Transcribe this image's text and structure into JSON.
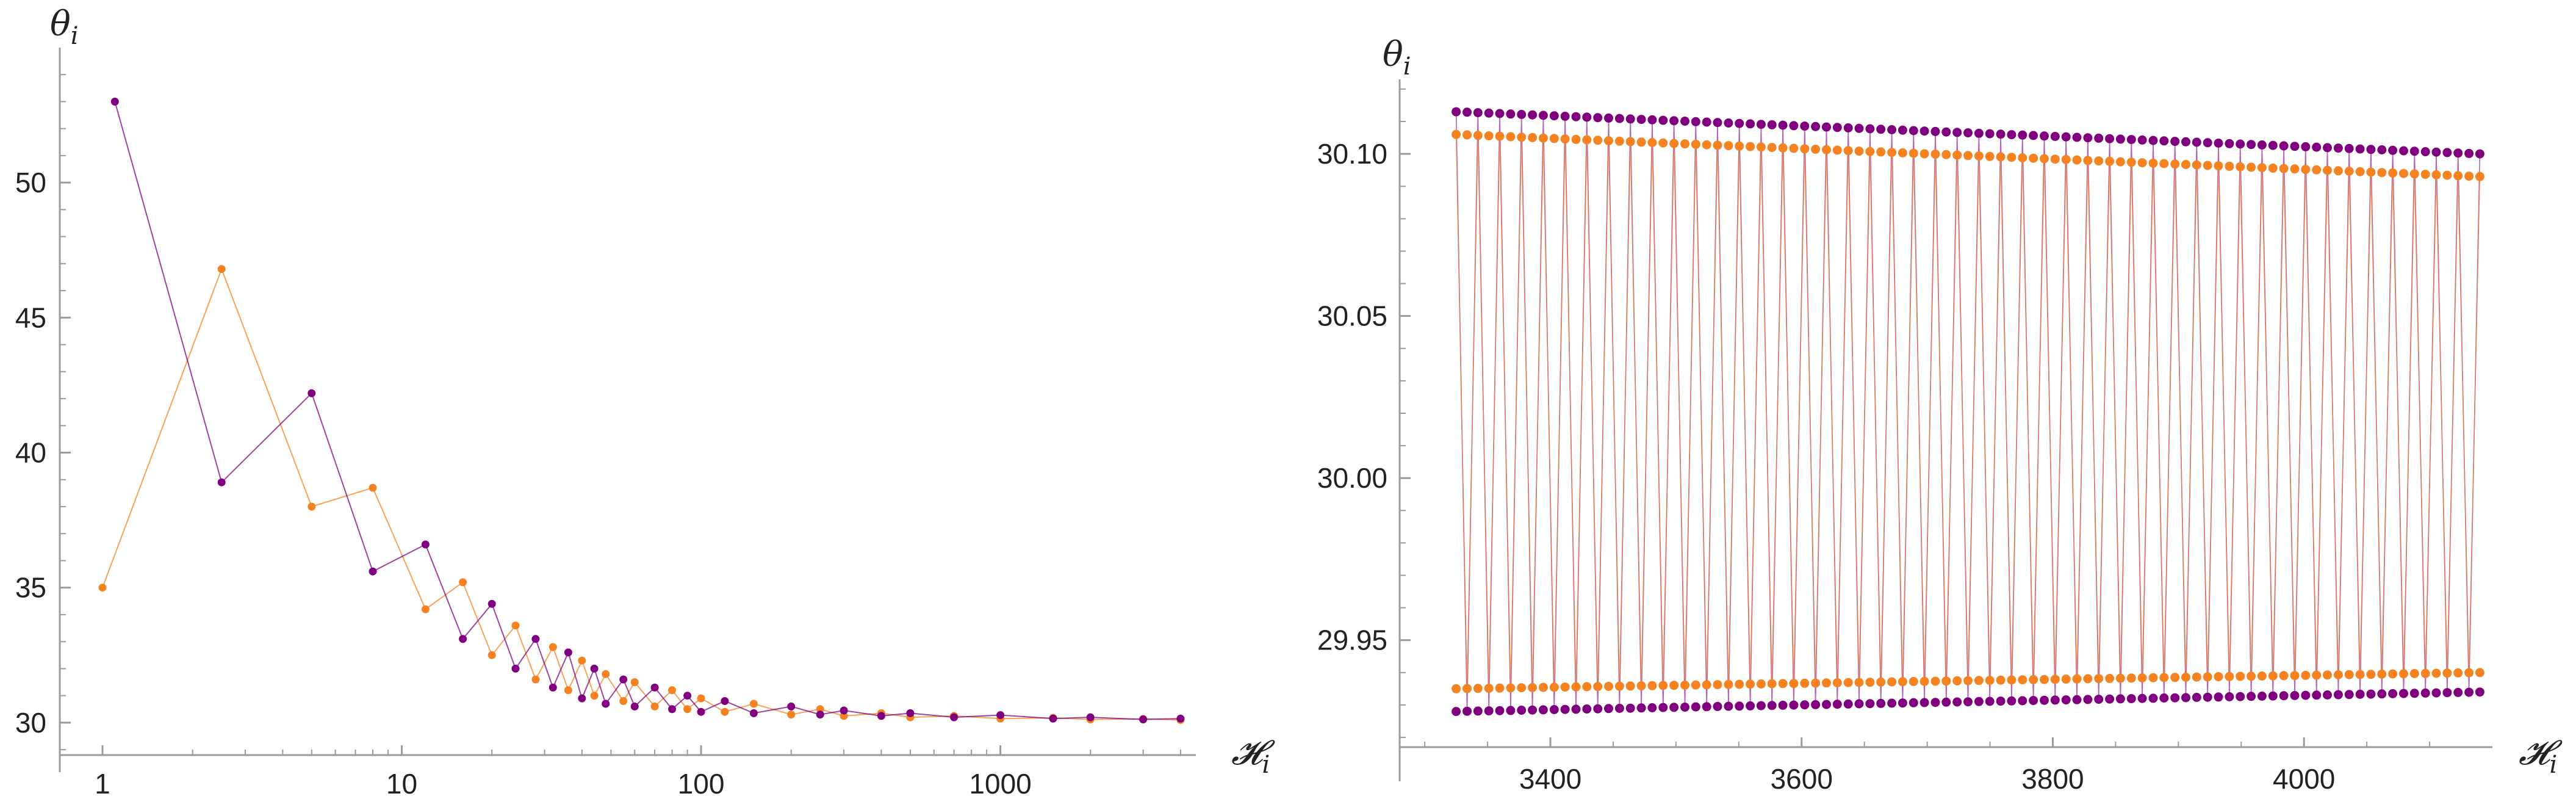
{
  "colors": {
    "series_a": "#F58220",
    "series_b": "#800080",
    "axis": "#9A9A9A",
    "text": "#222222"
  },
  "chart_data": [
    {
      "type": "scatter",
      "xlabel": "𝓗",
      "xlabel_sub": "i",
      "ylabel": "θ",
      "ylabel_sub": "i",
      "x_scale": "log",
      "xlim": [
        0.72,
        4500
      ],
      "ylim": [
        28.8,
        55
      ],
      "xticks": [
        1,
        10,
        100,
        1000
      ],
      "xtick_labels": [
        "1",
        "10",
        "100",
        "1000"
      ],
      "yticks": [
        30,
        35,
        40,
        45,
        50
      ],
      "ytick_labels": [
        "30",
        "35",
        "40",
        "45",
        "50"
      ],
      "grid": false,
      "series": [
        {
          "color": "#F58220",
          "points": [
            [
              1,
              35.0
            ],
            [
              2.5,
              46.8
            ],
            [
              5,
              38.0
            ],
            [
              8,
              38.7
            ],
            [
              12,
              34.2
            ],
            [
              16,
              35.2
            ],
            [
              20,
              32.5
            ],
            [
              24,
              33.6
            ],
            [
              28,
              31.6
            ],
            [
              32,
              32.8
            ],
            [
              36,
              31.2
            ],
            [
              40,
              32.3
            ],
            [
              44,
              31.0
            ],
            [
              48,
              31.8
            ],
            [
              55,
              30.8
            ],
            [
              60,
              31.5
            ],
            [
              70,
              30.6
            ],
            [
              80,
              31.2
            ],
            [
              90,
              30.5
            ],
            [
              100,
              30.9
            ],
            [
              120,
              30.4
            ],
            [
              150,
              30.7
            ],
            [
              200,
              30.3
            ],
            [
              250,
              30.5
            ],
            [
              300,
              30.25
            ],
            [
              400,
              30.35
            ],
            [
              500,
              30.2
            ],
            [
              700,
              30.25
            ],
            [
              1000,
              30.15
            ],
            [
              1500,
              30.18
            ],
            [
              2000,
              30.12
            ],
            [
              3000,
              30.14
            ],
            [
              4000,
              30.1
            ]
          ]
        },
        {
          "color": "#800080",
          "points": [
            [
              1.1,
              53.0
            ],
            [
              2.5,
              38.9
            ],
            [
              5,
              42.2
            ],
            [
              8,
              35.6
            ],
            [
              12,
              36.6
            ],
            [
              16,
              33.1
            ],
            [
              20,
              34.4
            ],
            [
              24,
              32.0
            ],
            [
              28,
              33.1
            ],
            [
              32,
              31.3
            ],
            [
              36,
              32.6
            ],
            [
              40,
              30.9
            ],
            [
              44,
              32.0
            ],
            [
              48,
              30.7
            ],
            [
              55,
              31.6
            ],
            [
              60,
              30.6
            ],
            [
              70,
              31.3
            ],
            [
              80,
              30.5
            ],
            [
              90,
              31.0
            ],
            [
              100,
              30.4
            ],
            [
              120,
              30.8
            ],
            [
              150,
              30.35
            ],
            [
              200,
              30.6
            ],
            [
              250,
              30.3
            ],
            [
              300,
              30.45
            ],
            [
              400,
              30.25
            ],
            [
              500,
              30.35
            ],
            [
              700,
              30.2
            ],
            [
              1000,
              30.28
            ],
            [
              1500,
              30.15
            ],
            [
              2000,
              30.2
            ],
            [
              3000,
              30.12
            ],
            [
              4000,
              30.15
            ]
          ]
        }
      ]
    },
    {
      "type": "scatter",
      "xlabel": "𝓗",
      "xlabel_sub": "i",
      "ylabel": "θ",
      "ylabel_sub": "i",
      "x_scale": "linear",
      "xlim": [
        3280,
        4150
      ],
      "ylim": [
        29.917,
        30.123
      ],
      "xticks": [
        3400,
        3600,
        3800,
        4000
      ],
      "xtick_labels": [
        "3400",
        "3600",
        "3800",
        "4000"
      ],
      "yticks": [
        29.95,
        30.0,
        30.05,
        30.1
      ],
      "ytick_labels": [
        "29.95",
        "30.00",
        "30.05",
        "30.10"
      ],
      "grid": false,
      "x_range": [
        3325,
        4140
      ],
      "series": [
        {
          "color": "#800080",
          "upper": [
            30.113,
            30.1
          ],
          "lower": [
            29.928,
            29.934
          ]
        },
        {
          "color": "#F58220",
          "upper": [
            30.106,
            30.093
          ],
          "lower": [
            29.935,
            29.94
          ]
        }
      ]
    }
  ]
}
